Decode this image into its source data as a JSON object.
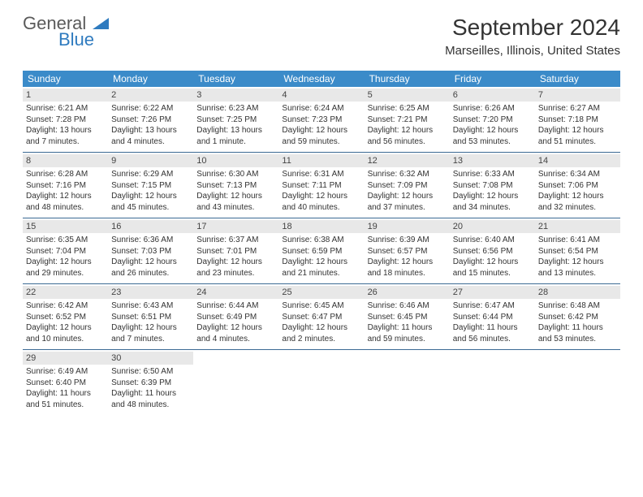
{
  "logo": {
    "line1": "General",
    "line2": "Blue"
  },
  "title": "September 2024",
  "location": "Marseilles, Illinois, United States",
  "colors": {
    "header_bg": "#3b8bc9",
    "header_text": "#ffffff",
    "daynum_bg": "#e8e8e8",
    "week_border": "#3b6a94",
    "body_text": "#333333",
    "logo_gray": "#5a5a5a",
    "logo_blue": "#2f7bbf"
  },
  "day_names": [
    "Sunday",
    "Monday",
    "Tuesday",
    "Wednesday",
    "Thursday",
    "Friday",
    "Saturday"
  ],
  "weeks": [
    [
      {
        "n": "1",
        "sr": "Sunrise: 6:21 AM",
        "ss": "Sunset: 7:28 PM",
        "dl": "Daylight: 13 hours and 7 minutes."
      },
      {
        "n": "2",
        "sr": "Sunrise: 6:22 AM",
        "ss": "Sunset: 7:26 PM",
        "dl": "Daylight: 13 hours and 4 minutes."
      },
      {
        "n": "3",
        "sr": "Sunrise: 6:23 AM",
        "ss": "Sunset: 7:25 PM",
        "dl": "Daylight: 13 hours and 1 minute."
      },
      {
        "n": "4",
        "sr": "Sunrise: 6:24 AM",
        "ss": "Sunset: 7:23 PM",
        "dl": "Daylight: 12 hours and 59 minutes."
      },
      {
        "n": "5",
        "sr": "Sunrise: 6:25 AM",
        "ss": "Sunset: 7:21 PM",
        "dl": "Daylight: 12 hours and 56 minutes."
      },
      {
        "n": "6",
        "sr": "Sunrise: 6:26 AM",
        "ss": "Sunset: 7:20 PM",
        "dl": "Daylight: 12 hours and 53 minutes."
      },
      {
        "n": "7",
        "sr": "Sunrise: 6:27 AM",
        "ss": "Sunset: 7:18 PM",
        "dl": "Daylight: 12 hours and 51 minutes."
      }
    ],
    [
      {
        "n": "8",
        "sr": "Sunrise: 6:28 AM",
        "ss": "Sunset: 7:16 PM",
        "dl": "Daylight: 12 hours and 48 minutes."
      },
      {
        "n": "9",
        "sr": "Sunrise: 6:29 AM",
        "ss": "Sunset: 7:15 PM",
        "dl": "Daylight: 12 hours and 45 minutes."
      },
      {
        "n": "10",
        "sr": "Sunrise: 6:30 AM",
        "ss": "Sunset: 7:13 PM",
        "dl": "Daylight: 12 hours and 43 minutes."
      },
      {
        "n": "11",
        "sr": "Sunrise: 6:31 AM",
        "ss": "Sunset: 7:11 PM",
        "dl": "Daylight: 12 hours and 40 minutes."
      },
      {
        "n": "12",
        "sr": "Sunrise: 6:32 AM",
        "ss": "Sunset: 7:09 PM",
        "dl": "Daylight: 12 hours and 37 minutes."
      },
      {
        "n": "13",
        "sr": "Sunrise: 6:33 AM",
        "ss": "Sunset: 7:08 PM",
        "dl": "Daylight: 12 hours and 34 minutes."
      },
      {
        "n": "14",
        "sr": "Sunrise: 6:34 AM",
        "ss": "Sunset: 7:06 PM",
        "dl": "Daylight: 12 hours and 32 minutes."
      }
    ],
    [
      {
        "n": "15",
        "sr": "Sunrise: 6:35 AM",
        "ss": "Sunset: 7:04 PM",
        "dl": "Daylight: 12 hours and 29 minutes."
      },
      {
        "n": "16",
        "sr": "Sunrise: 6:36 AM",
        "ss": "Sunset: 7:03 PM",
        "dl": "Daylight: 12 hours and 26 minutes."
      },
      {
        "n": "17",
        "sr": "Sunrise: 6:37 AM",
        "ss": "Sunset: 7:01 PM",
        "dl": "Daylight: 12 hours and 23 minutes."
      },
      {
        "n": "18",
        "sr": "Sunrise: 6:38 AM",
        "ss": "Sunset: 6:59 PM",
        "dl": "Daylight: 12 hours and 21 minutes."
      },
      {
        "n": "19",
        "sr": "Sunrise: 6:39 AM",
        "ss": "Sunset: 6:57 PM",
        "dl": "Daylight: 12 hours and 18 minutes."
      },
      {
        "n": "20",
        "sr": "Sunrise: 6:40 AM",
        "ss": "Sunset: 6:56 PM",
        "dl": "Daylight: 12 hours and 15 minutes."
      },
      {
        "n": "21",
        "sr": "Sunrise: 6:41 AM",
        "ss": "Sunset: 6:54 PM",
        "dl": "Daylight: 12 hours and 13 minutes."
      }
    ],
    [
      {
        "n": "22",
        "sr": "Sunrise: 6:42 AM",
        "ss": "Sunset: 6:52 PM",
        "dl": "Daylight: 12 hours and 10 minutes."
      },
      {
        "n": "23",
        "sr": "Sunrise: 6:43 AM",
        "ss": "Sunset: 6:51 PM",
        "dl": "Daylight: 12 hours and 7 minutes."
      },
      {
        "n": "24",
        "sr": "Sunrise: 6:44 AM",
        "ss": "Sunset: 6:49 PM",
        "dl": "Daylight: 12 hours and 4 minutes."
      },
      {
        "n": "25",
        "sr": "Sunrise: 6:45 AM",
        "ss": "Sunset: 6:47 PM",
        "dl": "Daylight: 12 hours and 2 minutes."
      },
      {
        "n": "26",
        "sr": "Sunrise: 6:46 AM",
        "ss": "Sunset: 6:45 PM",
        "dl": "Daylight: 11 hours and 59 minutes."
      },
      {
        "n": "27",
        "sr": "Sunrise: 6:47 AM",
        "ss": "Sunset: 6:44 PM",
        "dl": "Daylight: 11 hours and 56 minutes."
      },
      {
        "n": "28",
        "sr": "Sunrise: 6:48 AM",
        "ss": "Sunset: 6:42 PM",
        "dl": "Daylight: 11 hours and 53 minutes."
      }
    ],
    [
      {
        "n": "29",
        "sr": "Sunrise: 6:49 AM",
        "ss": "Sunset: 6:40 PM",
        "dl": "Daylight: 11 hours and 51 minutes."
      },
      {
        "n": "30",
        "sr": "Sunrise: 6:50 AM",
        "ss": "Sunset: 6:39 PM",
        "dl": "Daylight: 11 hours and 48 minutes."
      },
      null,
      null,
      null,
      null,
      null
    ]
  ]
}
